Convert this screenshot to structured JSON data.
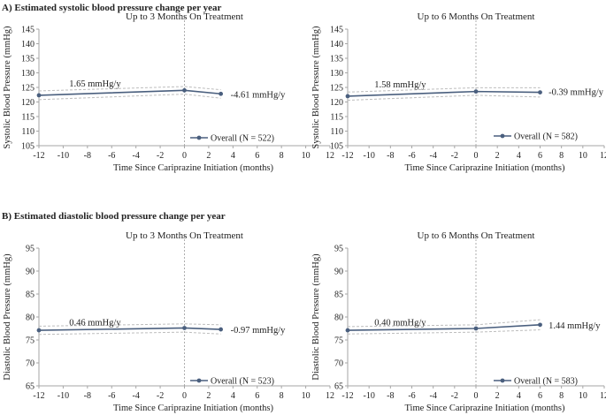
{
  "sections": {
    "a_title": "A) Estimated systolic blood pressure change per year",
    "b_title": "B) Estimated diastolic blood pressure change per year"
  },
  "chart_data": [
    {
      "type": "line",
      "title": "Up to 3 Months On Treatment",
      "xlabel": "Time Since Cariprazine Initiation (months)",
      "ylabel": "Systolic Blood Pressure (mmHg)",
      "xlim": [
        -12,
        12
      ],
      "ylim": [
        105,
        145
      ],
      "xticks": [
        -12,
        -10,
        -8,
        -6,
        -4,
        -2,
        0,
        2,
        4,
        6,
        8,
        10,
        12
      ],
      "yticks": [
        105,
        110,
        115,
        120,
        125,
        130,
        135,
        140,
        145
      ],
      "series": [
        {
          "name": "Overall (N = 522)",
          "x": [
            -12,
            0,
            3
          ],
          "y": [
            122.3,
            124.0,
            122.8
          ]
        }
      ],
      "ci_upper": {
        "x": [
          -12,
          0,
          3
        ],
        "y": [
          123.8,
          125.3,
          124.2
        ]
      },
      "ci_lower": {
        "x": [
          -12,
          0,
          3
        ],
        "y": [
          120.8,
          122.7,
          121.3
        ]
      },
      "annotations": [
        {
          "text": "1.65 mmHg/y",
          "x": -9.5,
          "y": 126.3
        },
        {
          "text": "-4.61 mmHg/y",
          "x": 3.8,
          "y": 122.6
        }
      ]
    },
    {
      "type": "line",
      "title": "Up to 6 Months On Treatment",
      "xlabel": "Time Since Cariprazine Initiation (months)",
      "ylabel": "Systolic Blood Pressure (mmHg)",
      "xlim": [
        -12,
        12
      ],
      "ylim": [
        105,
        145
      ],
      "xticks": [
        -12,
        -10,
        -8,
        -6,
        -4,
        -2,
        0,
        2,
        4,
        6,
        8,
        10,
        12
      ],
      "yticks": [
        105,
        110,
        115,
        120,
        125,
        130,
        135,
        140,
        145
      ],
      "series": [
        {
          "name": "Overall (N = 582)",
          "x": [
            -12,
            0,
            6
          ],
          "y": [
            122.0,
            123.6,
            123.3
          ]
        }
      ],
      "ci_upper": {
        "x": [
          -12,
          0,
          6
        ],
        "y": [
          123.4,
          124.9,
          124.9
        ]
      },
      "ci_lower": {
        "x": [
          -12,
          0,
          6
        ],
        "y": [
          120.6,
          122.3,
          121.7
        ]
      },
      "annotations": [
        {
          "text": "1.58 mmHg/y",
          "x": -9.5,
          "y": 126.0
        },
        {
          "text": "-0.39 mmHg/y",
          "x": 6.8,
          "y": 123.5
        }
      ]
    },
    {
      "type": "line",
      "title": "Up to 3 Months On Treatment",
      "xlabel": "Time Since Cariprazine Initiation (months)",
      "ylabel": "Diastolic Blood Pressure (mmHg)",
      "xlim": [
        -12,
        12
      ],
      "ylim": [
        65,
        95
      ],
      "xticks": [
        -12,
        -10,
        -8,
        -6,
        -4,
        -2,
        0,
        2,
        4,
        6,
        8,
        10,
        12
      ],
      "yticks": [
        65,
        70,
        75,
        80,
        85,
        90,
        95
      ],
      "series": [
        {
          "name": "Overall (N = 523)",
          "x": [
            -12,
            0,
            3
          ],
          "y": [
            77.1,
            77.6,
            77.3
          ]
        }
      ],
      "ci_upper": {
        "x": [
          -12,
          0,
          3
        ],
        "y": [
          78.0,
          78.5,
          78.3
        ]
      },
      "ci_lower": {
        "x": [
          -12,
          0,
          3
        ],
        "y": [
          76.2,
          76.7,
          76.3
        ]
      },
      "annotations": [
        {
          "text": "0.46 mmHg/y",
          "x": -9.5,
          "y": 78.8
        },
        {
          "text": "-0.97 mmHg/y",
          "x": 3.8,
          "y": 77.2
        }
      ]
    },
    {
      "type": "line",
      "title": "Up to 6 Months On Treatment",
      "xlabel": "Time Since Cariprazine Initiation (months)",
      "ylabel": "Diastolic Blood Pressure (mmHg)",
      "xlim": [
        -12,
        12
      ],
      "ylim": [
        65,
        95
      ],
      "xticks": [
        -12,
        -10,
        -8,
        -6,
        -4,
        -2,
        0,
        2,
        4,
        6,
        8,
        10,
        12
      ],
      "yticks": [
        65,
        70,
        75,
        80,
        85,
        90,
        95
      ],
      "series": [
        {
          "name": "Overall (N = 583)",
          "x": [
            -12,
            0,
            6
          ],
          "y": [
            77.1,
            77.5,
            78.3
          ]
        }
      ],
      "ci_upper": {
        "x": [
          -12,
          0,
          6
        ],
        "y": [
          77.9,
          78.3,
          79.4
        ]
      },
      "ci_lower": {
        "x": [
          -12,
          0,
          6
        ],
        "y": [
          76.3,
          76.7,
          77.2
        ]
      },
      "annotations": [
        {
          "text": "0.40 mmHg/y",
          "x": -9.5,
          "y": 78.8
        },
        {
          "text": "1.44 mmHg/y",
          "x": 6.8,
          "y": 78.2
        }
      ]
    }
  ],
  "colors": {
    "series": "#4a5f7e",
    "ci": "#bdbdbd",
    "axis": "#a6a6a6",
    "zero_line": "#9a9a9a",
    "text": "#222222"
  }
}
